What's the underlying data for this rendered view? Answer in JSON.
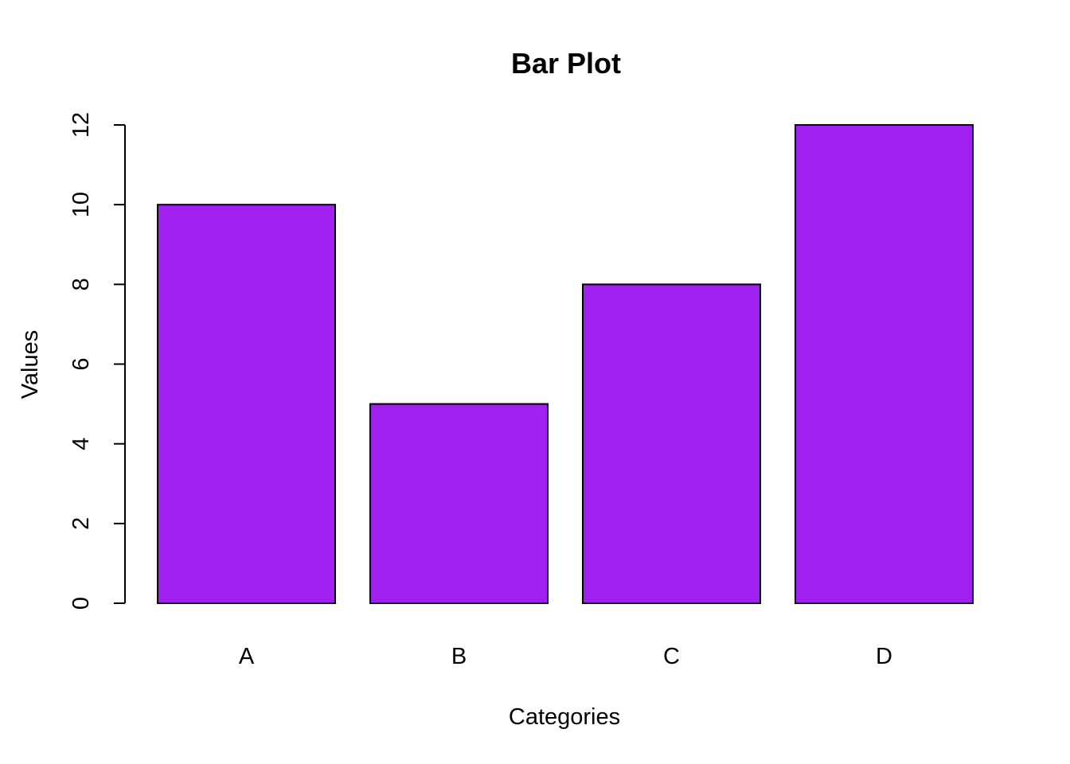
{
  "chart_data": {
    "type": "bar",
    "title": "Bar Plot",
    "xlabel": "Categories",
    "ylabel": "Values",
    "categories": [
      "A",
      "B",
      "C",
      "D"
    ],
    "values": [
      10,
      5,
      8,
      12
    ],
    "ylim": [
      0,
      12
    ],
    "yticks": [
      "0",
      "2",
      "4",
      "6",
      "8",
      "10",
      "12"
    ],
    "grid": false,
    "legend": "none",
    "bar_color": "#A020F0",
    "bar_border_color": "#000000"
  }
}
